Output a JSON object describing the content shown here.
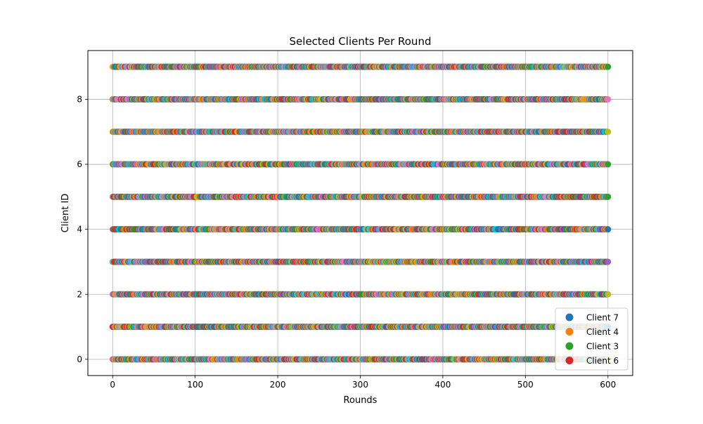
{
  "chart_data": {
    "type": "scatter",
    "title": "Selected Clients Per Round",
    "xlabel": "Rounds",
    "ylabel": "Client ID",
    "xlim": [
      -30,
      630
    ],
    "ylim": [
      -0.5,
      9.5
    ],
    "x_ticks": [
      0,
      100,
      200,
      300,
      400,
      500,
      600
    ],
    "y_ticks": [
      0,
      2,
      4,
      6,
      8
    ],
    "grid": true,
    "legend_placement": "lower-right",
    "rounds_range": [
      0,
      600
    ],
    "client_ids": [
      0,
      1,
      2,
      3,
      4,
      5,
      6,
      7,
      8,
      9
    ],
    "clients_selected_per_round": 10,
    "series": [
      {
        "name": "Client 7",
        "color": "#1f77b4"
      },
      {
        "name": "Client 4",
        "color": "#ff7f0e"
      },
      {
        "name": "Client 3",
        "color": "#2ca02c"
      },
      {
        "name": "Client 6",
        "color": "#d62728"
      }
    ],
    "additional_marker_colors": [
      "#9467bd",
      "#8c564b",
      "#e377c2",
      "#7f7f7f",
      "#bcbd22",
      "#17becf"
    ]
  }
}
